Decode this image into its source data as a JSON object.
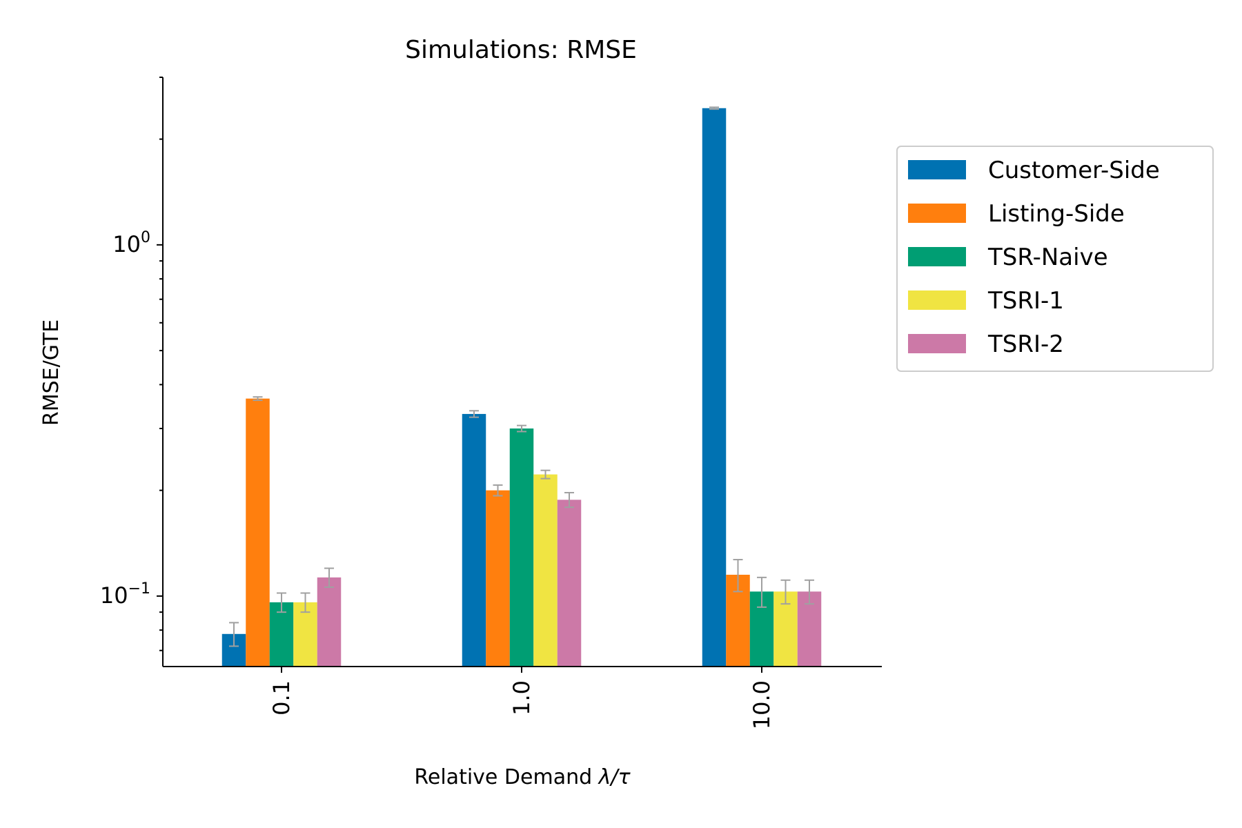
{
  "chart_data": {
    "type": "bar",
    "title": "Simulations: RMSE",
    "xlabel_text": "Relative Demand ",
    "xlabel_math": "λ/τ",
    "ylabel": "RMSE/GTE",
    "yscale": "log",
    "ylim": [
      0.063,
      3.0
    ],
    "categories": [
      "0.1",
      "1.0",
      "10.0"
    ],
    "ytick_major": [
      {
        "value": 0.1,
        "base": "10",
        "exp": "−1"
      },
      {
        "value": 1.0,
        "base": "10",
        "exp": "0"
      }
    ],
    "series": [
      {
        "name": "Customer-Side",
        "color": "#0072B2",
        "values": [
          0.078,
          0.33,
          2.45
        ],
        "errors": [
          0.006,
          0.007,
          0.015
        ]
      },
      {
        "name": "Listing-Side",
        "color": "#FF7F0E",
        "values": [
          0.365,
          0.2,
          0.115
        ],
        "errors": [
          0.004,
          0.007,
          0.012
        ]
      },
      {
        "name": "TSR-Naive",
        "color": "#009E73",
        "values": [
          0.096,
          0.3,
          0.103
        ],
        "errors": [
          0.006,
          0.006,
          0.01
        ]
      },
      {
        "name": "TSRI-1",
        "color": "#F0E442",
        "values": [
          0.096,
          0.222,
          0.103
        ],
        "errors": [
          0.006,
          0.006,
          0.008
        ]
      },
      {
        "name": "TSRI-2",
        "color": "#CC79A7",
        "values": [
          0.113,
          0.188,
          0.103
        ],
        "errors": [
          0.007,
          0.009,
          0.008
        ]
      }
    ],
    "error_color": "#A0A0A0",
    "legend_position": "right-outside"
  }
}
